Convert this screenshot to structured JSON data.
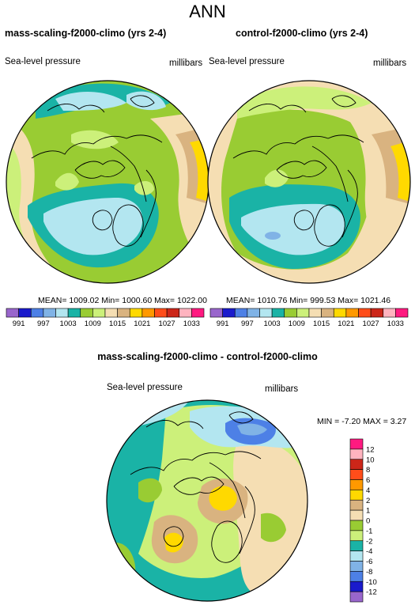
{
  "figure": {
    "main_title": "ANN"
  },
  "palette": [
    "#9966cc",
    "#1a1acc",
    "#4d80e6",
    "#80b3e6",
    "#b3e6f0",
    "#1ab3a6",
    "#99cc33",
    "#ccf07a",
    "#f5deb3",
    "#d9b380",
    "#ffd900",
    "#ff9900",
    "#ff4d1a",
    "#cc2619",
    "#ffb3bf",
    "#ff1a80"
  ],
  "panels": [
    {
      "title": "mass-scaling-f2000-climo (yrs 2-4)",
      "variable_label": "Sea-level pressure",
      "units_label": "millibars",
      "stats_text": "MEAN= 1009.02  Min= 1000.60  Max= 1022.00"
    },
    {
      "title": "control-f2000-climo (yrs 2-4)",
      "variable_label": "Sea-level pressure",
      "units_label": "millibars",
      "stats_text": "MEAN= 1010.76  Min= 999.53  Max= 1021.46"
    },
    {
      "title": "mass-scaling-f2000-climo - control-f2000-climo",
      "variable_label": "Sea-level pressure",
      "units_label": "millibars",
      "stats_text": "MIN =   -7.20 MAX =   3.27"
    }
  ],
  "chart_data": [
    {
      "type": "heatmap",
      "title": "mass-scaling-f2000-climo (yrs 2-4)",
      "projection": "north polar stereographic",
      "variable": "Sea-level pressure",
      "units": "millibars",
      "mean": 1009.02,
      "min": 1000.6,
      "max": 1022.0,
      "colorbar": {
        "orientation": "horizontal",
        "tick_labels": [
          "991",
          "997",
          "1003",
          "1009",
          "1015",
          "1021",
          "1027",
          "1033"
        ],
        "levels": [
          991,
          994,
          997,
          1000,
          1003,
          1006,
          1009,
          1012,
          1015,
          1018,
          1021,
          1024,
          1027,
          1030,
          1033
        ],
        "colors": [
          "#9966cc",
          "#1a1acc",
          "#4d80e6",
          "#80b3e6",
          "#b3e6f0",
          "#1ab3a6",
          "#99cc33",
          "#ccf07a",
          "#f5deb3",
          "#d9b380",
          "#ffd900",
          "#ff9900",
          "#ff4d1a",
          "#cc2619",
          "#ffb3bf",
          "#ff1a80"
        ]
      }
    },
    {
      "type": "heatmap",
      "title": "control-f2000-climo (yrs 2-4)",
      "projection": "north polar stereographic",
      "variable": "Sea-level pressure",
      "units": "millibars",
      "mean": 1010.76,
      "min": 999.53,
      "max": 1021.46,
      "colorbar": {
        "orientation": "horizontal",
        "tick_labels": [
          "991",
          "997",
          "1003",
          "1009",
          "1015",
          "1021",
          "1027",
          "1033"
        ],
        "levels": [
          991,
          994,
          997,
          1000,
          1003,
          1006,
          1009,
          1012,
          1015,
          1018,
          1021,
          1024,
          1027,
          1030,
          1033
        ],
        "colors": [
          "#9966cc",
          "#1a1acc",
          "#4d80e6",
          "#80b3e6",
          "#b3e6f0",
          "#1ab3a6",
          "#99cc33",
          "#ccf07a",
          "#f5deb3",
          "#d9b380",
          "#ffd900",
          "#ff9900",
          "#ff4d1a",
          "#cc2619",
          "#ffb3bf",
          "#ff1a80"
        ]
      }
    },
    {
      "type": "heatmap",
      "title": "mass-scaling-f2000-climo - control-f2000-climo",
      "projection": "north polar stereographic",
      "variable": "Sea-level pressure",
      "units": "millibars",
      "min": -7.2,
      "max": 3.27,
      "colorbar": {
        "orientation": "vertical",
        "tick_labels": [
          "12",
          "10",
          "8",
          "6",
          "4",
          "2",
          "1",
          "0",
          "-1",
          "-2",
          "-4",
          "-6",
          "-8",
          "-10",
          "-12"
        ],
        "levels": [
          12,
          10,
          8,
          6,
          4,
          2,
          1,
          0,
          -1,
          -2,
          -4,
          -6,
          -8,
          -10,
          -12
        ],
        "colors_top_to_bottom": [
          "#ff1a80",
          "#ffb3bf",
          "#cc2619",
          "#ff4d1a",
          "#ff9900",
          "#ffd900",
          "#d9b380",
          "#f5deb3",
          "#99cc33",
          "#ccf07a",
          "#1ab3a6",
          "#b3e6f0",
          "#80b3e6",
          "#4d80e6",
          "#1a1acc",
          "#9966cc"
        ]
      }
    }
  ]
}
